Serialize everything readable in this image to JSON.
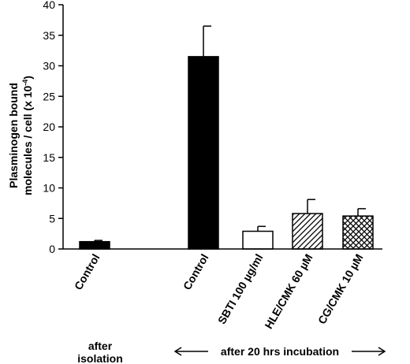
{
  "chart_data": {
    "type": "bar",
    "categories": [
      "Control",
      "Control",
      "SBTI 100 µg/ml",
      "HLE/CMK 60 µM",
      "CG/CMK 10 µM"
    ],
    "values": [
      1.2,
      31.5,
      2.9,
      5.8,
      5.4
    ],
    "errors": [
      0.2,
      5.0,
      0.8,
      2.3,
      1.2
    ],
    "fills": [
      "solid",
      "solid",
      "open",
      "hatch",
      "crosshatch"
    ],
    "ylabel_line1": "Plasminogen bound",
    "ylabel_line2": "molecules / cell (x 10",
    "ylabel_exp": "-4",
    "ylabel_close": ")",
    "ylim": [
      0,
      40
    ],
    "yticks": [
      "0",
      "5",
      "10",
      "15",
      "20",
      "25",
      "30",
      "35",
      "40"
    ],
    "groups": [
      {
        "line1": "after",
        "line2": "isolation"
      },
      {
        "label": "after 20 hrs incubation"
      }
    ],
    "grid": false
  }
}
